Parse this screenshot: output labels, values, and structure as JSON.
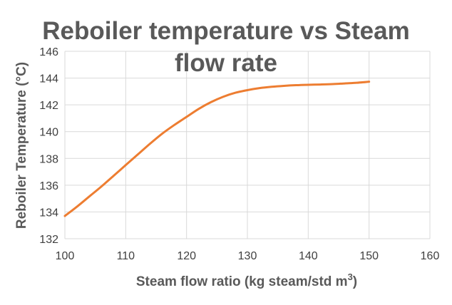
{
  "chart_data": {
    "type": "line",
    "title_lines": [
      "Reboiler temperature vs Steam",
      "flow rate"
    ],
    "xlabel": "Steam flow ratio (kg steam/std m",
    "xlabel_superscript": "3",
    "xlabel_suffix": ")",
    "ylabel": "Reboiler Temperature (°C)",
    "xlim": [
      100,
      160
    ],
    "ylim": [
      132,
      146
    ],
    "x_ticks": [
      100,
      110,
      120,
      130,
      140,
      150,
      160
    ],
    "y_ticks": [
      132,
      134,
      136,
      138,
      140,
      142,
      144,
      146
    ],
    "grid": true,
    "legend": "none",
    "series": [
      {
        "color": "#ed7d31",
        "x": [
          100,
          102,
          104,
          106,
          108,
          110,
          112,
          114,
          116,
          118,
          120,
          122,
          124,
          126,
          128,
          130,
          132,
          134,
          136,
          138,
          140,
          142,
          144,
          146,
          148,
          150
        ],
        "y": [
          133.7,
          134.4,
          135.15,
          135.9,
          136.7,
          137.5,
          138.3,
          139.1,
          139.85,
          140.5,
          141.1,
          141.7,
          142.2,
          142.6,
          142.9,
          143.1,
          143.25,
          143.35,
          143.42,
          143.47,
          143.5,
          143.52,
          143.55,
          143.6,
          143.65,
          143.73
        ]
      }
    ]
  }
}
